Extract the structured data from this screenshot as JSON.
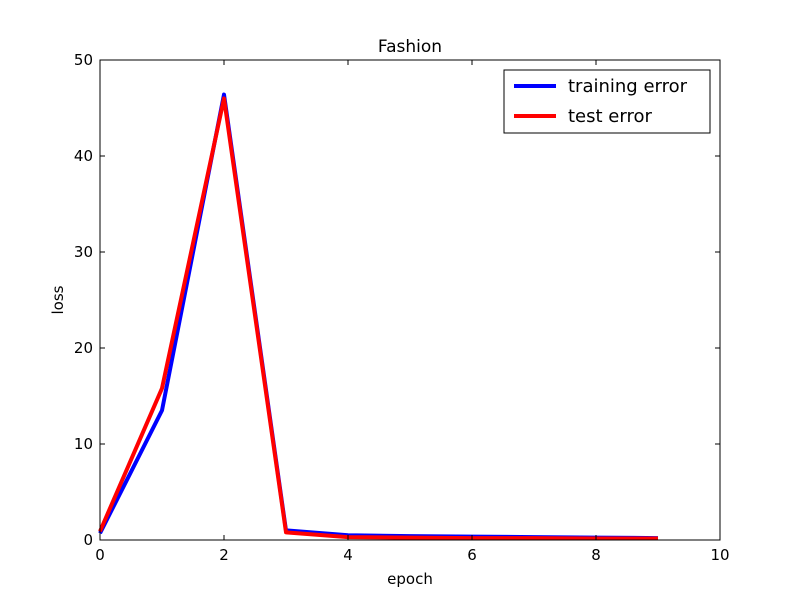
{
  "chart_data": {
    "type": "line",
    "title": "Fashion",
    "xlabel": "epoch",
    "ylabel": "loss",
    "xlim": [
      0,
      10
    ],
    "ylim": [
      0,
      50
    ],
    "xticks": [
      0,
      2,
      4,
      6,
      8,
      10
    ],
    "yticks": [
      0,
      10,
      20,
      30,
      40,
      50
    ],
    "grid": false,
    "legend_position": "top-right",
    "x": [
      0,
      1,
      2,
      3,
      4,
      5,
      6,
      7,
      8,
      9
    ],
    "series": [
      {
        "name": "training error",
        "color": "#0000ff",
        "values": [
          0.7,
          13.5,
          46.4,
          1.0,
          0.5,
          0.4,
          0.35,
          0.3,
          0.25,
          0.2
        ]
      },
      {
        "name": "test error",
        "color": "#ff0000",
        "values": [
          0.9,
          15.8,
          46.0,
          0.8,
          0.3,
          0.25,
          0.2,
          0.2,
          0.15,
          0.15
        ]
      }
    ]
  }
}
